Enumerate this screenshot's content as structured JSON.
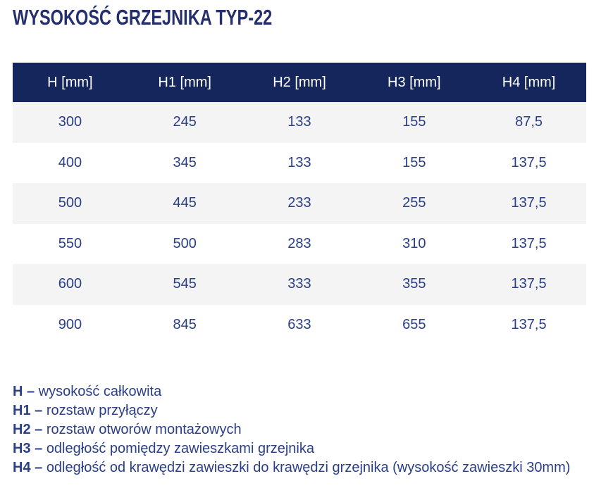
{
  "title": "WYSOKOŚĆ GRZEJNIKA TYP-22",
  "colors": {
    "header_bg": "#14265c",
    "header_text": "#ffffff",
    "cell_text": "#2b3e88",
    "title_text": "#242f6c",
    "row_alt_bg": "#f4f4f4"
  },
  "table": {
    "columns": [
      "H [mm]",
      "H1 [mm]",
      "H2 [mm]",
      "H3 [mm]",
      "H4 [mm]"
    ],
    "rows": [
      [
        "300",
        "245",
        "133",
        "155",
        "87,5"
      ],
      [
        "400",
        "345",
        "133",
        "155",
        "137,5"
      ],
      [
        "500",
        "445",
        "233",
        "255",
        "137,5"
      ],
      [
        "550",
        "500",
        "283",
        "310",
        "137,5"
      ],
      [
        "600",
        "545",
        "333",
        "355",
        "137,5"
      ],
      [
        "900",
        "845",
        "633",
        "655",
        "137,5"
      ]
    ]
  },
  "legend": [
    {
      "term": "H –",
      "desc": "wysokość całkowita"
    },
    {
      "term": "H1 –",
      "desc": "rozstaw przyłączy"
    },
    {
      "term": "H2 –",
      "desc": "rozstaw otworów montażowych"
    },
    {
      "term": "H3 –",
      "desc": "odległość pomiędzy zawieszkami grzejnika"
    },
    {
      "term": "H4 –",
      "desc": "odległość od krawędzi zawieszki do krawędzi grzejnika (wysokość zawieszki 30mm)"
    }
  ]
}
